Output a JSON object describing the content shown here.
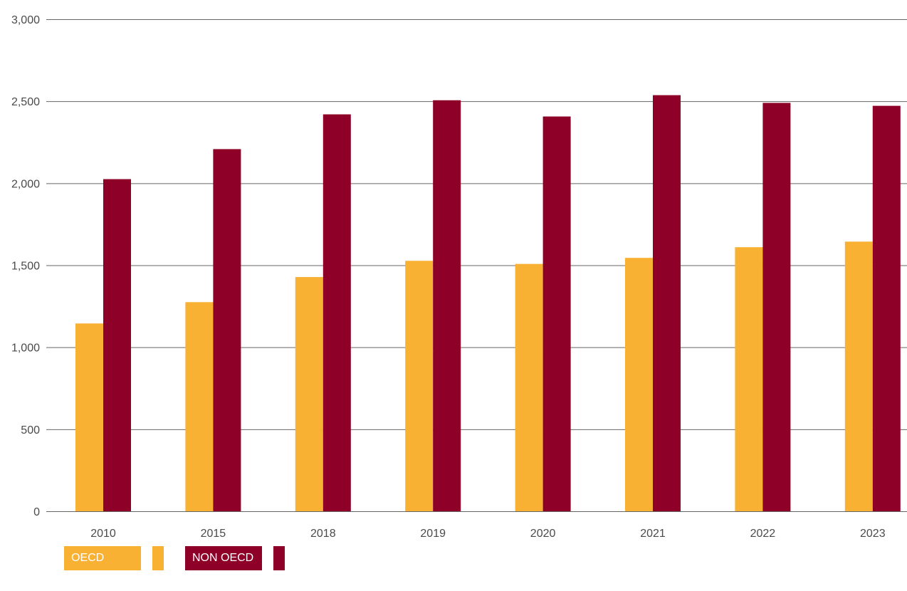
{
  "chart_data": {
    "type": "bar",
    "categories": [
      "2010",
      "2015",
      "2018",
      "2019",
      "2020",
      "2021",
      "2022",
      "2023"
    ],
    "series": [
      {
        "name": "OECD",
        "color": "#F8B133",
        "values": [
          1145,
          1275,
          1428,
          1527,
          1508,
          1545,
          1610,
          1644
        ]
      },
      {
        "name": "NON OECD",
        "color": "#8E0027",
        "values": [
          2025,
          2208,
          2420,
          2506,
          2407,
          2537,
          2490,
          2472
        ]
      }
    ],
    "ylim": [
      0,
      3000
    ],
    "yticks": [
      0,
      500,
      1000,
      1500,
      2000,
      2500,
      3000
    ],
    "ytick_labels": [
      "0",
      "500",
      "1,000",
      "1,500",
      "2,000",
      "2,500",
      "3,000"
    ],
    "grid": true,
    "gridline_color": "#666666",
    "legend_position": "bottom-left",
    "title": "",
    "xlabel": "",
    "ylabel": ""
  }
}
